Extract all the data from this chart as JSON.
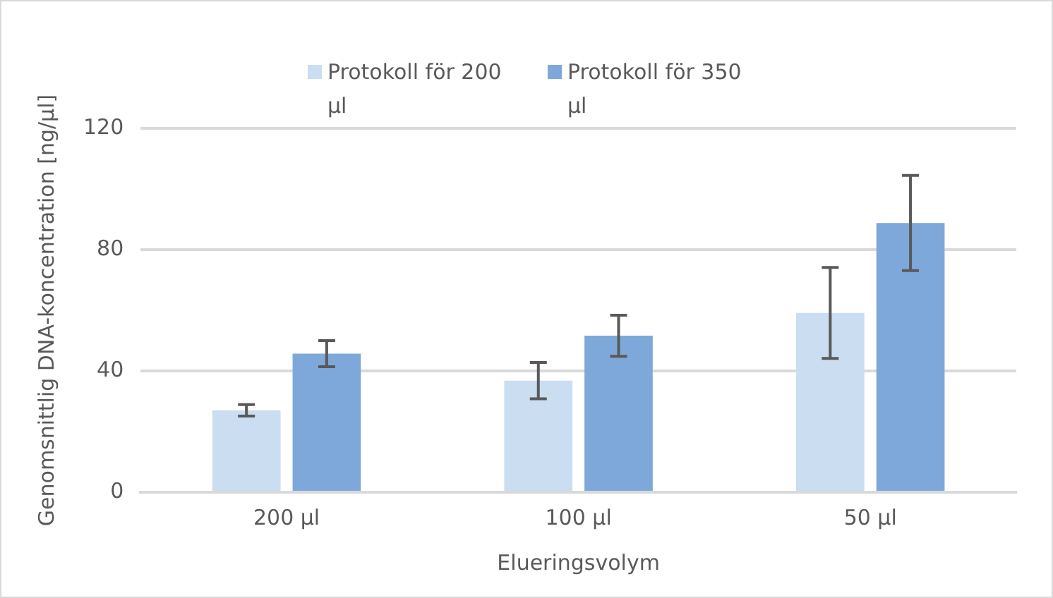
{
  "chart_data": {
    "type": "bar",
    "xlabel": "Elueringsvolym",
    "ylabel": "Genomsnittlig DNA-koncentration [ng/µl]",
    "categories": [
      "200 µl",
      "100 µl",
      "50 µl"
    ],
    "series": [
      {
        "name": "Protokoll för 200 µl",
        "color": "#cbddf1",
        "values": [
          27.0,
          36.8,
          59.1
        ],
        "errors": [
          1.9,
          6.0,
          15.0
        ]
      },
      {
        "name": "Protokoll för 350 µl",
        "color": "#7ea8da",
        "values": [
          45.7,
          51.6,
          88.8
        ],
        "errors": [
          4.3,
          6.8,
          15.7
        ]
      }
    ],
    "ylim": [
      0,
      120
    ],
    "yticks": [
      0,
      40,
      80,
      120
    ],
    "grid": "y",
    "legend": "top"
  }
}
